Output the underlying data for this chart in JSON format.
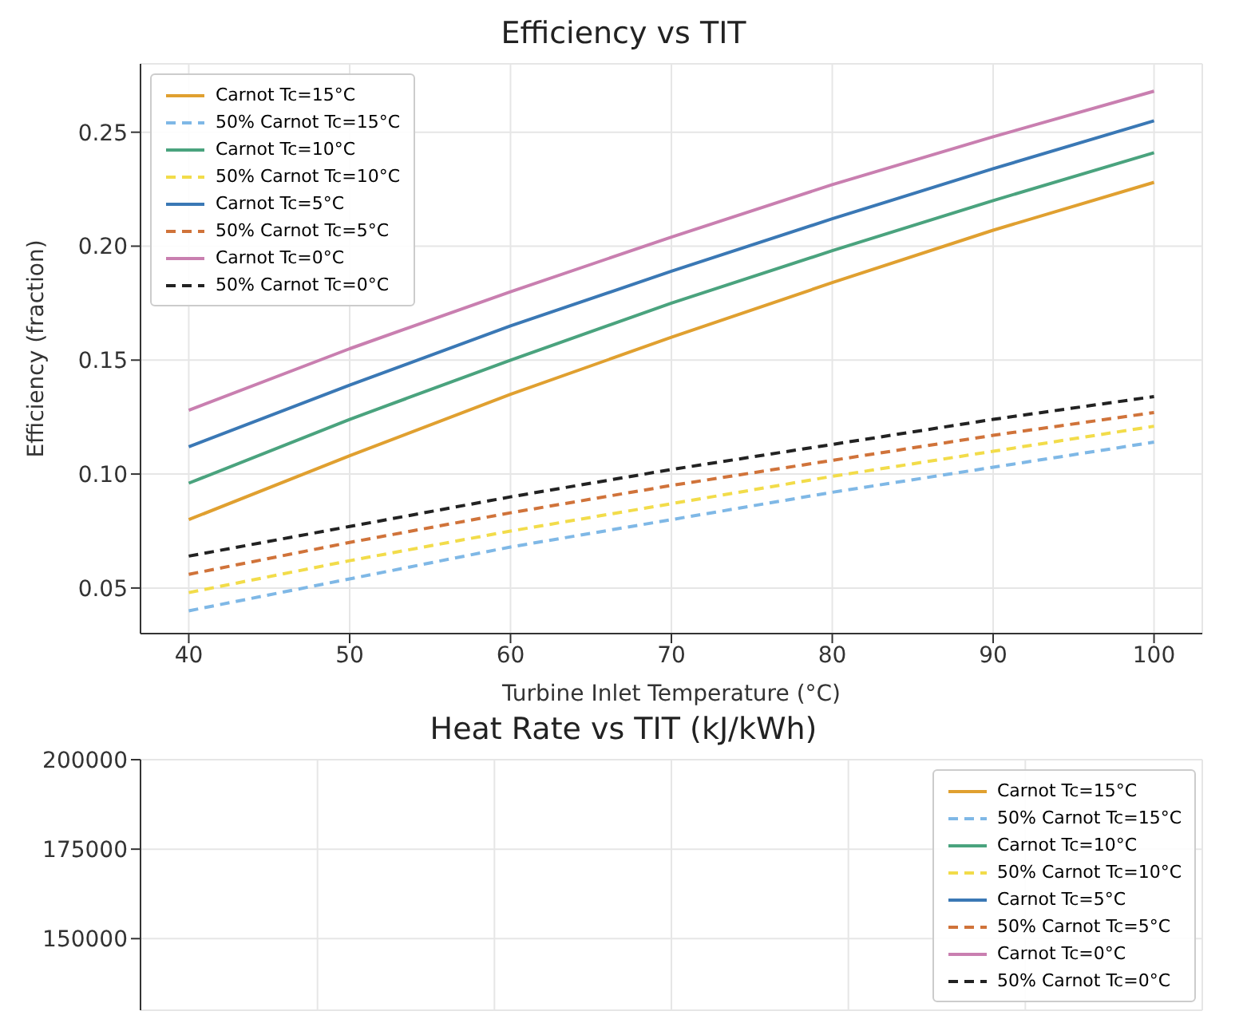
{
  "chart_data": [
    {
      "type": "line",
      "title": "Efficiency vs TIT",
      "xlabel": "Turbine Inlet Temperature (°C)",
      "ylabel": "Efficiency (fraction)",
      "x": [
        40,
        50,
        60,
        70,
        80,
        90,
        100
      ],
      "xlim": [
        37,
        103
      ],
      "xticks": [
        40,
        50,
        60,
        70,
        80,
        90,
        100
      ],
      "ylim": [
        0.03,
        0.28
      ],
      "yticks": [
        0.05,
        {
          "value": 0.1,
          "label": "0.10"
        },
        0.15,
        {
          "value": 0.2,
          "label": "0.20"
        },
        0.25
      ],
      "grid": true,
      "legend": "top left",
      "marker": "none",
      "series": [
        {
          "name": "Carnot Tc=15°C",
          "color": "#e0a030",
          "line_style": "solid",
          "values": [
            0.08,
            0.108,
            0.135,
            0.16,
            0.184,
            0.207,
            0.228
          ]
        },
        {
          "name": "50% Carnot Tc=15°C",
          "color": "#7fb8e6",
          "line_style": "dashed",
          "values": [
            0.04,
            0.054,
            0.068,
            0.08,
            0.092,
            0.103,
            0.114
          ]
        },
        {
          "name": "Carnot Tc=10°C",
          "color": "#4aa37e",
          "line_style": "solid",
          "values": [
            0.096,
            0.124,
            0.15,
            0.175,
            0.198,
            0.22,
            0.241
          ]
        },
        {
          "name": "50% Carnot Tc=10°C",
          "color": "#f2dc4a",
          "line_style": "dashed",
          "values": [
            0.048,
            0.062,
            0.075,
            0.087,
            0.099,
            0.11,
            0.121
          ]
        },
        {
          "name": "Carnot Tc=5°C",
          "color": "#3a78b5",
          "line_style": "solid",
          "values": [
            0.112,
            0.139,
            0.165,
            0.189,
            0.212,
            0.234,
            0.255
          ]
        },
        {
          "name": "50% Carnot Tc=5°C",
          "color": "#d0733a",
          "line_style": "dashed",
          "values": [
            0.056,
            0.07,
            0.083,
            0.095,
            0.106,
            0.117,
            0.127
          ]
        },
        {
          "name": "Carnot Tc=0°C",
          "color": "#c97fb0",
          "line_style": "solid",
          "values": [
            0.128,
            0.155,
            0.18,
            0.204,
            0.227,
            0.248,
            0.268
          ]
        },
        {
          "name": "50% Carnot Tc=0°C",
          "color": "#222222",
          "line_style": "dashed",
          "values": [
            0.064,
            0.077,
            0.09,
            0.102,
            0.113,
            0.124,
            0.134
          ]
        }
      ]
    },
    {
      "type": "line",
      "title": "Heat Rate vs TIT (kJ/kWh)",
      "categories": [
        null,
        null,
        null,
        null,
        null,
        null,
        null
      ],
      "ylim": [
        130000,
        200000
      ],
      "yticks": [
        150000,
        175000,
        200000
      ],
      "tick_labels": "y",
      "grid": true,
      "legend": "top right",
      "marker": "none",
      "series": [
        {
          "name": "Carnot Tc=15°C",
          "color": "#e0a030",
          "line_style": "solid",
          "values": [
            null,
            null,
            null,
            null,
            null,
            null,
            null
          ]
        },
        {
          "name": "50% Carnot Tc=15°C",
          "color": "#7fb8e6",
          "line_style": "dashed",
          "values": [
            null,
            null,
            null,
            null,
            null,
            null,
            null
          ]
        },
        {
          "name": "Carnot Tc=10°C",
          "color": "#4aa37e",
          "line_style": "solid",
          "values": [
            null,
            null,
            null,
            null,
            null,
            null,
            null
          ]
        },
        {
          "name": "50% Carnot Tc=10°C",
          "color": "#f2dc4a",
          "line_style": "dashed",
          "values": [
            null,
            null,
            null,
            null,
            null,
            null,
            null
          ]
        },
        {
          "name": "Carnot Tc=5°C",
          "color": "#3a78b5",
          "line_style": "solid",
          "values": [
            null,
            null,
            null,
            null,
            null,
            null,
            null
          ]
        },
        {
          "name": "50% Carnot Tc=5°C",
          "color": "#d0733a",
          "line_style": "dashed",
          "values": [
            null,
            null,
            null,
            null,
            null,
            null,
            null
          ]
        },
        {
          "name": "Carnot Tc=0°C",
          "color": "#c97fb0",
          "line_style": "solid",
          "values": [
            null,
            null,
            null,
            null,
            null,
            null,
            null
          ]
        },
        {
          "name": "50% Carnot Tc=0°C",
          "color": "#222222",
          "line_style": "dashed",
          "values": [
            null,
            null,
            null,
            null,
            null,
            null,
            null
          ]
        }
      ]
    }
  ]
}
